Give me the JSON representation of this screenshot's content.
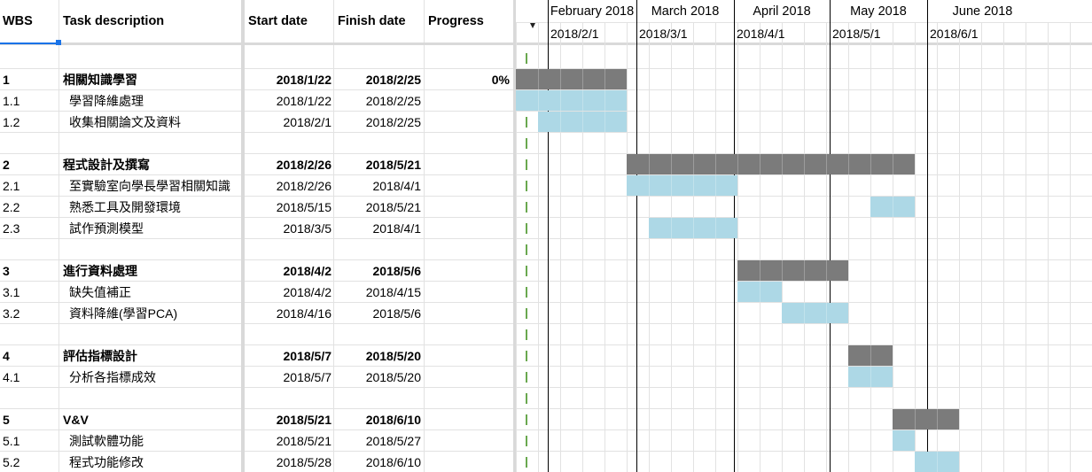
{
  "headers": {
    "wbs": "WBS",
    "task": "Task description",
    "start": "Start date",
    "finish": "Finish date",
    "progress": "Progress"
  },
  "timeline": {
    "months": [
      "February 2018",
      "March 2018",
      "April 2018",
      "May 2018",
      "June 2018"
    ],
    "dates": [
      "2018/2/1",
      "2018/3/1",
      "2018/4/1",
      "2018/5/1",
      "2018/6/1"
    ]
  },
  "rows": [
    {
      "wbs": "1",
      "task": "相關知識學習",
      "start": "2018/1/22",
      "finish": "2018/2/25",
      "progress": "0%",
      "summary": true
    },
    {
      "wbs": "1.1",
      "task": "學習降維處理",
      "start": "2018/1/22",
      "finish": "2018/2/25",
      "progress": "",
      "summary": false
    },
    {
      "wbs": "1.2",
      "task": "收集相關論文及資料",
      "start": "2018/2/1",
      "finish": "2018/2/25",
      "progress": "",
      "summary": false
    },
    {
      "wbs": "",
      "task": "",
      "start": "",
      "finish": "",
      "progress": "",
      "summary": false
    },
    {
      "wbs": "2",
      "task": "程式設計及撰寫",
      "start": "2018/2/26",
      "finish": "2018/5/21",
      "progress": "",
      "summary": true
    },
    {
      "wbs": "2.1",
      "task": "至實驗室向學長學習相關知識",
      "start": "2018/2/26",
      "finish": "2018/4/1",
      "progress": "",
      "summary": false
    },
    {
      "wbs": "2.2",
      "task": "熟悉工具及開發環境",
      "start": "2018/5/15",
      "finish": "2018/5/21",
      "progress": "",
      "summary": false
    },
    {
      "wbs": "2.3",
      "task": "試作預測模型",
      "start": "2018/3/5",
      "finish": "2018/4/1",
      "progress": "",
      "summary": false
    },
    {
      "wbs": "",
      "task": "",
      "start": "",
      "finish": "",
      "progress": "",
      "summary": false
    },
    {
      "wbs": "3",
      "task": "進行資料處理",
      "start": "2018/4/2",
      "finish": "2018/5/6",
      "progress": "",
      "summary": true
    },
    {
      "wbs": "3.1",
      "task": "缺失值補正",
      "start": "2018/4/2",
      "finish": "2018/4/15",
      "progress": "",
      "summary": false
    },
    {
      "wbs": "3.2",
      "task": "資料降維(學習PCA)",
      "start": "2018/4/16",
      "finish": "2018/5/6",
      "progress": "",
      "summary": false
    },
    {
      "wbs": "",
      "task": "",
      "start": "",
      "finish": "",
      "progress": "",
      "summary": false
    },
    {
      "wbs": "4",
      "task": "評估指標設計",
      "start": "2018/5/7",
      "finish": "2018/5/20",
      "progress": "",
      "summary": true
    },
    {
      "wbs": "4.1",
      "task": "分析各指標成效",
      "start": "2018/5/7",
      "finish": "2018/5/20",
      "progress": "",
      "summary": false
    },
    {
      "wbs": "",
      "task": "",
      "start": "",
      "finish": "",
      "progress": "",
      "summary": false
    },
    {
      "wbs": "5",
      "task": "V&V",
      "start": "2018/5/21",
      "finish": "2018/6/10",
      "progress": "",
      "summary": true
    },
    {
      "wbs": "5.1",
      "task": "測試軟體功能",
      "start": "2018/5/21",
      "finish": "2018/5/27",
      "progress": "",
      "summary": false
    },
    {
      "wbs": "5.2",
      "task": "程式功能修改",
      "start": "2018/5/28",
      "finish": "2018/6/10",
      "progress": "",
      "summary": false
    }
  ],
  "colors": {
    "summary_bar": "#7b7b7b",
    "task_bar": "#add8e6",
    "month_divider": "#000000",
    "gridline": "#e2e2e2",
    "selection": "#1a73e8",
    "today_marker": "#6aa84f"
  }
}
